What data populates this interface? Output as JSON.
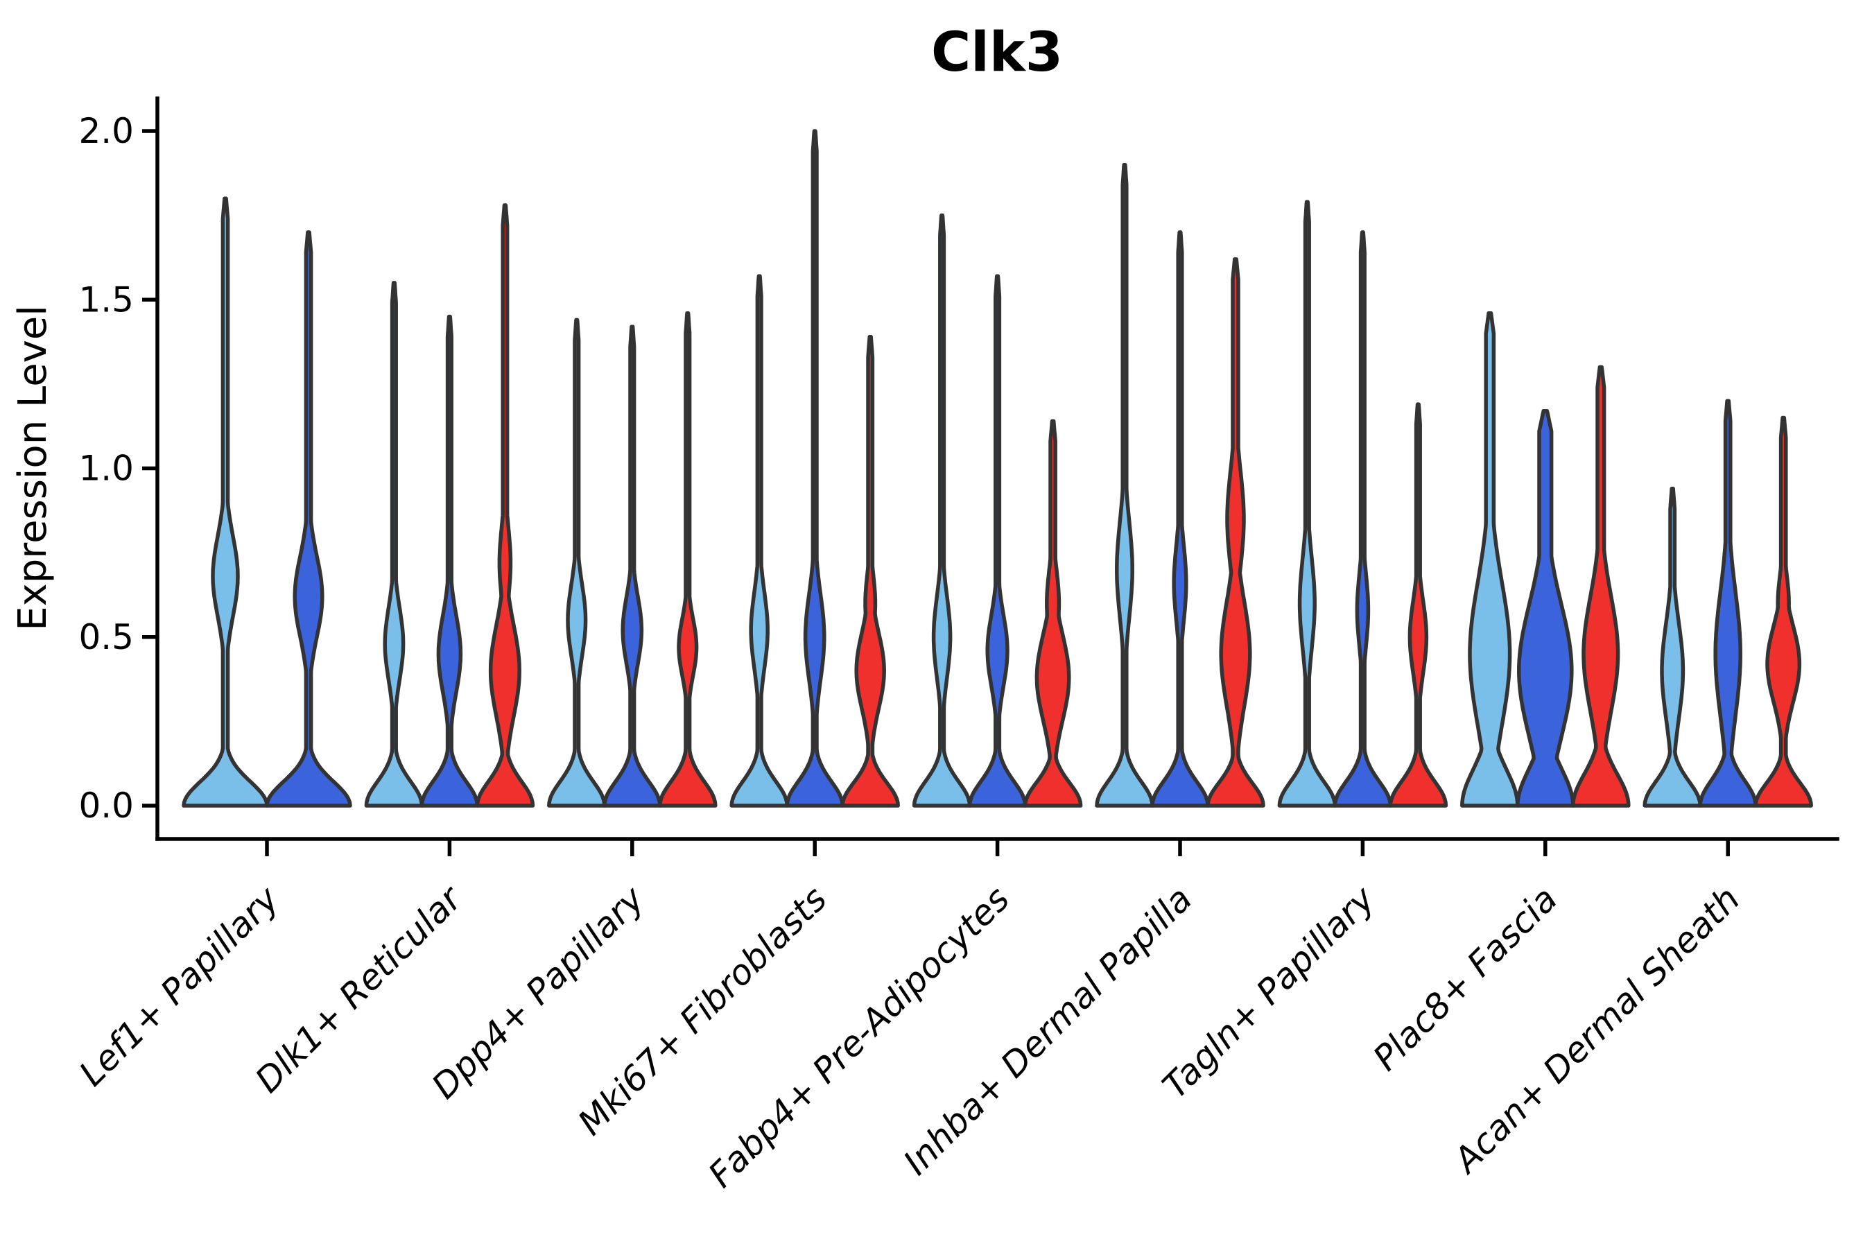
{
  "chart_data": {
    "type": "violin",
    "title": "Clk3",
    "xlabel": "",
    "ylabel": "Expression Level",
    "ylim": [
      -0.1,
      2.1
    ],
    "yticks": [
      0,
      0.5,
      1.0,
      1.5,
      2.0
    ],
    "ytick_labels": [
      "0.0",
      "0.5",
      "1.0",
      "1.5",
      "2.0"
    ],
    "grid": false,
    "legend": "none",
    "background_color": "#ffffff",
    "axis_color": "#000000",
    "violin_edge_color": "#333333",
    "hues": [
      {
        "name": "light-blue",
        "hex": "#79BFE9"
      },
      {
        "name": "royal-blue",
        "hex": "#3B64DC"
      },
      {
        "name": "red",
        "hex": "#F0302C"
      }
    ],
    "categories": [
      "Lef1+ Papillary",
      "Dlk1+ Reticular",
      "Dpp4+ Papillary",
      "Mki67+ Fibroblasts",
      "Fabp4+ Pre-Adipocytes",
      "Inhba+ Dermal Papilla",
      "Tagln+ Papillary",
      "Plac8+ Fascia",
      "Acan+ Dermal Sheath"
    ],
    "groups": [
      {
        "label": "Lef1+ Papillary",
        "violins": [
          {
            "hue": 0,
            "max": 1.8,
            "bulges": [
              [
                0.68,
                0.17,
                0.3
              ]
            ],
            "stem": 0.06,
            "base": 0.1
          },
          {
            "hue": 1,
            "max": 1.7,
            "bulges": [
              [
                0.62,
                0.17,
                0.33
              ]
            ],
            "stem": 0.06,
            "base": 0.1
          }
        ]
      },
      {
        "label": "Dlk1+ Reticular",
        "violins": [
          {
            "hue": 0,
            "max": 1.55,
            "bulges": [
              [
                0.48,
                0.15,
                0.33
              ]
            ],
            "stem": 0.07,
            "base": 0.1
          },
          {
            "hue": 1,
            "max": 1.45,
            "bulges": [
              [
                0.45,
                0.16,
                0.4
              ]
            ],
            "stem": 0.07,
            "base": 0.1
          },
          {
            "hue": 2,
            "max": 1.78,
            "bulges": [
              [
                0.4,
                0.19,
                0.52
              ],
              [
                0.72,
                0.15,
                0.2
              ]
            ],
            "stem": 0.08,
            "base": 0.1
          }
        ]
      },
      {
        "label": "Dpp4+ Papillary",
        "violins": [
          {
            "hue": 0,
            "max": 1.44,
            "bulges": [
              [
                0.55,
                0.15,
                0.32
              ]
            ],
            "stem": 0.07,
            "base": 0.1
          },
          {
            "hue": 1,
            "max": 1.42,
            "bulges": [
              [
                0.52,
                0.14,
                0.34
              ]
            ],
            "stem": 0.07,
            "base": 0.1
          },
          {
            "hue": 2,
            "max": 1.46,
            "bulges": [
              [
                0.47,
                0.12,
                0.32
              ]
            ],
            "stem": 0.07,
            "base": 0.1
          }
        ]
      },
      {
        "label": "Mki67+ Fibroblasts",
        "violins": [
          {
            "hue": 0,
            "max": 1.57,
            "bulges": [
              [
                0.52,
                0.16,
                0.3
              ]
            ],
            "stem": 0.07,
            "base": 0.1
          },
          {
            "hue": 1,
            "max": 2.0,
            "bulges": [
              [
                0.5,
                0.18,
                0.34
              ]
            ],
            "stem": 0.07,
            "base": 0.1
          },
          {
            "hue": 2,
            "max": 1.39,
            "bulges": [
              [
                0.4,
                0.16,
                0.5
              ],
              [
                0.6,
                0.12,
                0.18
              ]
            ],
            "stem": 0.08,
            "base": 0.095
          }
        ]
      },
      {
        "label": "Fabp4+ Pre-Adipocytes",
        "violins": [
          {
            "hue": 0,
            "max": 1.75,
            "bulges": [
              [
                0.5,
                0.17,
                0.3
              ]
            ],
            "stem": 0.07,
            "base": 0.1
          },
          {
            "hue": 1,
            "max": 1.57,
            "bulges": [
              [
                0.46,
                0.15,
                0.36
              ]
            ],
            "stem": 0.07,
            "base": 0.1
          },
          {
            "hue": 2,
            "max": 1.14,
            "bulges": [
              [
                0.38,
                0.18,
                0.58
              ],
              [
                0.6,
                0.14,
                0.22
              ]
            ],
            "stem": 0.09,
            "base": 0.095
          }
        ]
      },
      {
        "label": "Inhba+ Dermal Papilla",
        "violins": [
          {
            "hue": 0,
            "max": 1.9,
            "bulges": [
              [
                0.7,
                0.2,
                0.28
              ]
            ],
            "stem": 0.07,
            "base": 0.1
          },
          {
            "hue": 1,
            "max": 1.7,
            "bulges": [
              [
                0.66,
                0.16,
                0.22
              ]
            ],
            "stem": 0.07,
            "base": 0.1
          },
          {
            "hue": 2,
            "max": 1.62,
            "bulges": [
              [
                0.45,
                0.22,
                0.52
              ],
              [
                0.85,
                0.2,
                0.3
              ]
            ],
            "stem": 0.1,
            "base": 0.095
          }
        ]
      },
      {
        "label": "Tagln+ Papillary",
        "violins": [
          {
            "hue": 0,
            "max": 1.79,
            "bulges": [
              [
                0.6,
                0.19,
                0.27
              ]
            ],
            "stem": 0.07,
            "base": 0.1
          },
          {
            "hue": 1,
            "max": 1.7,
            "bulges": [
              [
                0.58,
                0.15,
                0.2
              ]
            ],
            "stem": 0.07,
            "base": 0.1
          },
          {
            "hue": 2,
            "max": 1.19,
            "bulges": [
              [
                0.5,
                0.15,
                0.3
              ]
            ],
            "stem": 0.07,
            "base": 0.1
          }
        ]
      },
      {
        "label": "Plac8+ Fascia",
        "violins": [
          {
            "hue": 0,
            "max": 1.46,
            "bulges": [
              [
                0.45,
                0.3,
                0.72
              ]
            ],
            "stem": 0.14,
            "base": 0.15
          },
          {
            "hue": 1,
            "max": 1.17,
            "bulges": [
              [
                0.4,
                0.28,
                0.95
              ]
            ],
            "stem": 0.22,
            "base": 0.15
          },
          {
            "hue": 2,
            "max": 1.3,
            "bulges": [
              [
                0.45,
                0.24,
                0.62
              ]
            ],
            "stem": 0.12,
            "base": 0.13
          }
        ]
      },
      {
        "label": "Acan+ Dermal Sheath",
        "violins": [
          {
            "hue": 0,
            "max": 0.94,
            "bulges": [
              [
                0.4,
                0.2,
                0.38
              ]
            ],
            "stem": 0.08,
            "base": 0.1
          },
          {
            "hue": 1,
            "max": 1.2,
            "bulges": [
              [
                0.45,
                0.26,
                0.45
              ]
            ],
            "stem": 0.09,
            "base": 0.105
          },
          {
            "hue": 2,
            "max": 1.15,
            "bulges": [
              [
                0.42,
                0.16,
                0.58
              ],
              [
                0.6,
                0.12,
                0.2
              ]
            ],
            "stem": 0.09,
            "base": 0.095
          }
        ]
      }
    ]
  }
}
